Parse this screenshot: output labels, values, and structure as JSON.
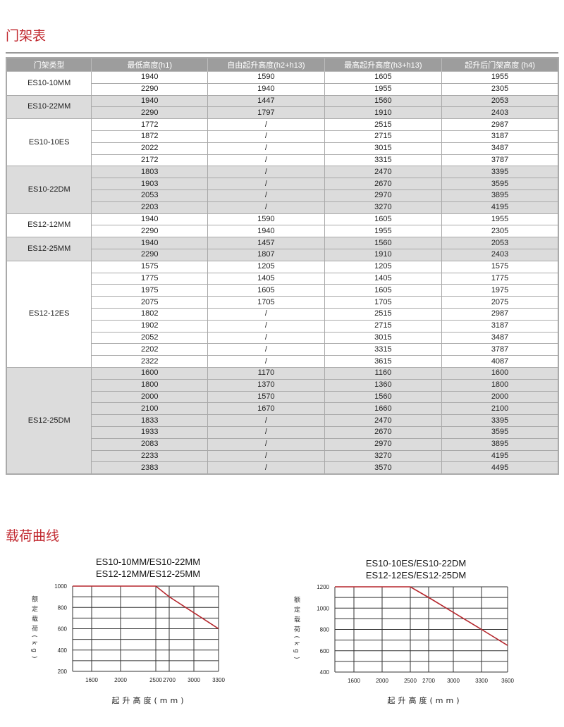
{
  "section1_title": "门架表",
  "table": {
    "headers": [
      "门架类型",
      "最低高度(h1)",
      "自由起升高度(h2+h13)",
      "最高起升高度(h3+h13)",
      "起升后门架高度 (h4)"
    ],
    "groups": [
      {
        "model": "ES10-10MM",
        "rows": [
          [
            "1940",
            "1590",
            "1605",
            "1955"
          ],
          [
            "2290",
            "1940",
            "1955",
            "2305"
          ]
        ]
      },
      {
        "model": "ES10-22MM",
        "rows": [
          [
            "1940",
            "1447",
            "1560",
            "2053"
          ],
          [
            "2290",
            "1797",
            "1910",
            "2403"
          ]
        ]
      },
      {
        "model": "ES10-10ES",
        "rows": [
          [
            "1772",
            "/",
            "2515",
            "2987"
          ],
          [
            "1872",
            "/",
            "2715",
            "3187"
          ],
          [
            "2022",
            "/",
            "3015",
            "3487"
          ],
          [
            "2172",
            "/",
            "3315",
            "3787"
          ]
        ]
      },
      {
        "model": "ES10-22DM",
        "rows": [
          [
            "1803",
            "/",
            "2470",
            "3395"
          ],
          [
            "1903",
            "/",
            "2670",
            "3595"
          ],
          [
            "2053",
            "/",
            "2970",
            "3895"
          ],
          [
            "2203",
            "/",
            "3270",
            "4195"
          ]
        ]
      },
      {
        "model": "ES12-12MM",
        "rows": [
          [
            "1940",
            "1590",
            "1605",
            "1955"
          ],
          [
            "2290",
            "1940",
            "1955",
            "2305"
          ]
        ]
      },
      {
        "model": "ES12-25MM",
        "rows": [
          [
            "1940",
            "1457",
            "1560",
            "2053"
          ],
          [
            "2290",
            "1807",
            "1910",
            "2403"
          ]
        ]
      },
      {
        "model": "ES12-12ES",
        "rows": [
          [
            "1575",
            "1205",
            "1205",
            "1575"
          ],
          [
            "1775",
            "1405",
            "1405",
            "1775"
          ],
          [
            "1975",
            "1605",
            "1605",
            "1975"
          ],
          [
            "2075",
            "1705",
            "1705",
            "2075"
          ],
          [
            "1802",
            "/",
            "2515",
            "2987"
          ],
          [
            "1902",
            "/",
            "2715",
            "3187"
          ],
          [
            "2052",
            "/",
            "3015",
            "3487"
          ],
          [
            "2202",
            "/",
            "3315",
            "3787"
          ],
          [
            "2322",
            "/",
            "3615",
            "4087"
          ]
        ]
      },
      {
        "model": "ES12-25DM",
        "rows": [
          [
            "1600",
            "1170",
            "1160",
            "1600"
          ],
          [
            "1800",
            "1370",
            "1360",
            "1800"
          ],
          [
            "2000",
            "1570",
            "1560",
            "2000"
          ],
          [
            "2100",
            "1670",
            "1660",
            "2100"
          ],
          [
            "1833",
            "/",
            "2470",
            "3395"
          ],
          [
            "1933",
            "/",
            "2670",
            "3595"
          ],
          [
            "2083",
            "/",
            "2970",
            "3895"
          ],
          [
            "2233",
            "/",
            "3270",
            "4195"
          ],
          [
            "2383",
            "/",
            "3570",
            "4495"
          ]
        ]
      }
    ]
  },
  "section2_title": "载荷曲线",
  "chart_data": [
    {
      "type": "line",
      "title": [
        "ES10-10MM/ES10-22MM",
        "ES12-12MM/ES12-25MM"
      ],
      "xlabel": "起升高度(mm)",
      "ylabel": "额定载荷(kg)",
      "x_ticks": [
        1600,
        2000,
        2500,
        2700,
        3000,
        3300
      ],
      "y_ticks": [
        1000,
        800,
        600,
        400,
        200
      ],
      "ylim": [
        200,
        1000
      ],
      "grid": true,
      "line_color": "#b5272d",
      "points": [
        [
          1400,
          1000
        ],
        [
          2500,
          1000
        ],
        [
          2700,
          900
        ],
        [
          3000,
          750
        ],
        [
          3300,
          600
        ]
      ]
    },
    {
      "type": "line",
      "title": [
        "ES10-10ES/ES10-22DM",
        "ES12-12ES/ES12-25DM"
      ],
      "xlabel": "起升高度(mm)",
      "ylabel": "额定载荷(kg)",
      "x_ticks": [
        1600,
        2000,
        2500,
        2700,
        3000,
        3300,
        3600
      ],
      "y_ticks": [
        1200,
        1000,
        800,
        600,
        400
      ],
      "ylim": [
        400,
        1200
      ],
      "grid": true,
      "line_color": "#b5272d",
      "points": [
        [
          1400,
          1200
        ],
        [
          2500,
          1200
        ],
        [
          2700,
          1100
        ],
        [
          3000,
          960
        ],
        [
          3300,
          800
        ],
        [
          3600,
          650
        ]
      ]
    }
  ]
}
